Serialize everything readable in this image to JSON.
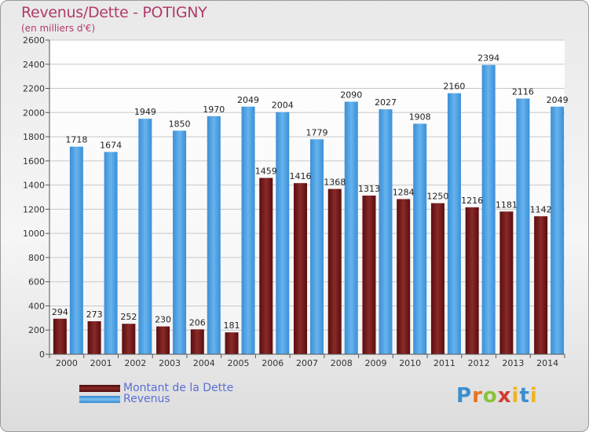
{
  "title": "Revenus/Dette - POTIGNY",
  "subtitle": "(en milliers d'€)",
  "chart_data": {
    "type": "bar",
    "categories": [
      "2000",
      "2001",
      "2002",
      "2003",
      "2004",
      "2005",
      "2006",
      "2007",
      "2008",
      "2009",
      "2010",
      "2011",
      "2012",
      "2013",
      "2014"
    ],
    "series": [
      {
        "name": "Montant de la Dette",
        "color": "#7a1f1f",
        "values": [
          294,
          273,
          252,
          230,
          206,
          181,
          1459,
          1416,
          1368,
          1313,
          1284,
          1250,
          1216,
          1181,
          1142
        ],
        "labels": [
          "294",
          "273",
          "252",
          "230",
          "206",
          "181",
          "1459",
          "1416",
          "1368",
          "1313",
          "1284",
          "1250",
          "1216",
          "1181",
          "1142"
        ]
      },
      {
        "name": "Revenus",
        "color": "#4a9de0",
        "values": [
          1718,
          1674,
          1949,
          1850,
          1970,
          2049,
          2004,
          1779,
          2090,
          2027,
          1908,
          2160,
          2394,
          2116,
          2049
        ],
        "labels": [
          "1718",
          "1674",
          "1949",
          "1850",
          "1970",
          "2049",
          "2004",
          "1779",
          "2090",
          "2027",
          "1908",
          "2160",
          "2394",
          "2116",
          "2049"
        ]
      }
    ],
    "ylim": [
      0,
      2600
    ],
    "yticks": [
      0,
      200,
      400,
      600,
      800,
      1000,
      1200,
      1400,
      1600,
      1800,
      2000,
      2200,
      2400,
      2600
    ],
    "grid": true,
    "legend_position": "bottom-left"
  },
  "legend": [
    {
      "label": "Montant de la Dette",
      "color": "#7a1f1f"
    },
    {
      "label": "Revenus",
      "color": "#4a9de0"
    }
  ],
  "logo": {
    "text": "Proxiti",
    "letters": [
      "P",
      "r",
      "o",
      "x",
      "i",
      "t",
      "i"
    ]
  }
}
